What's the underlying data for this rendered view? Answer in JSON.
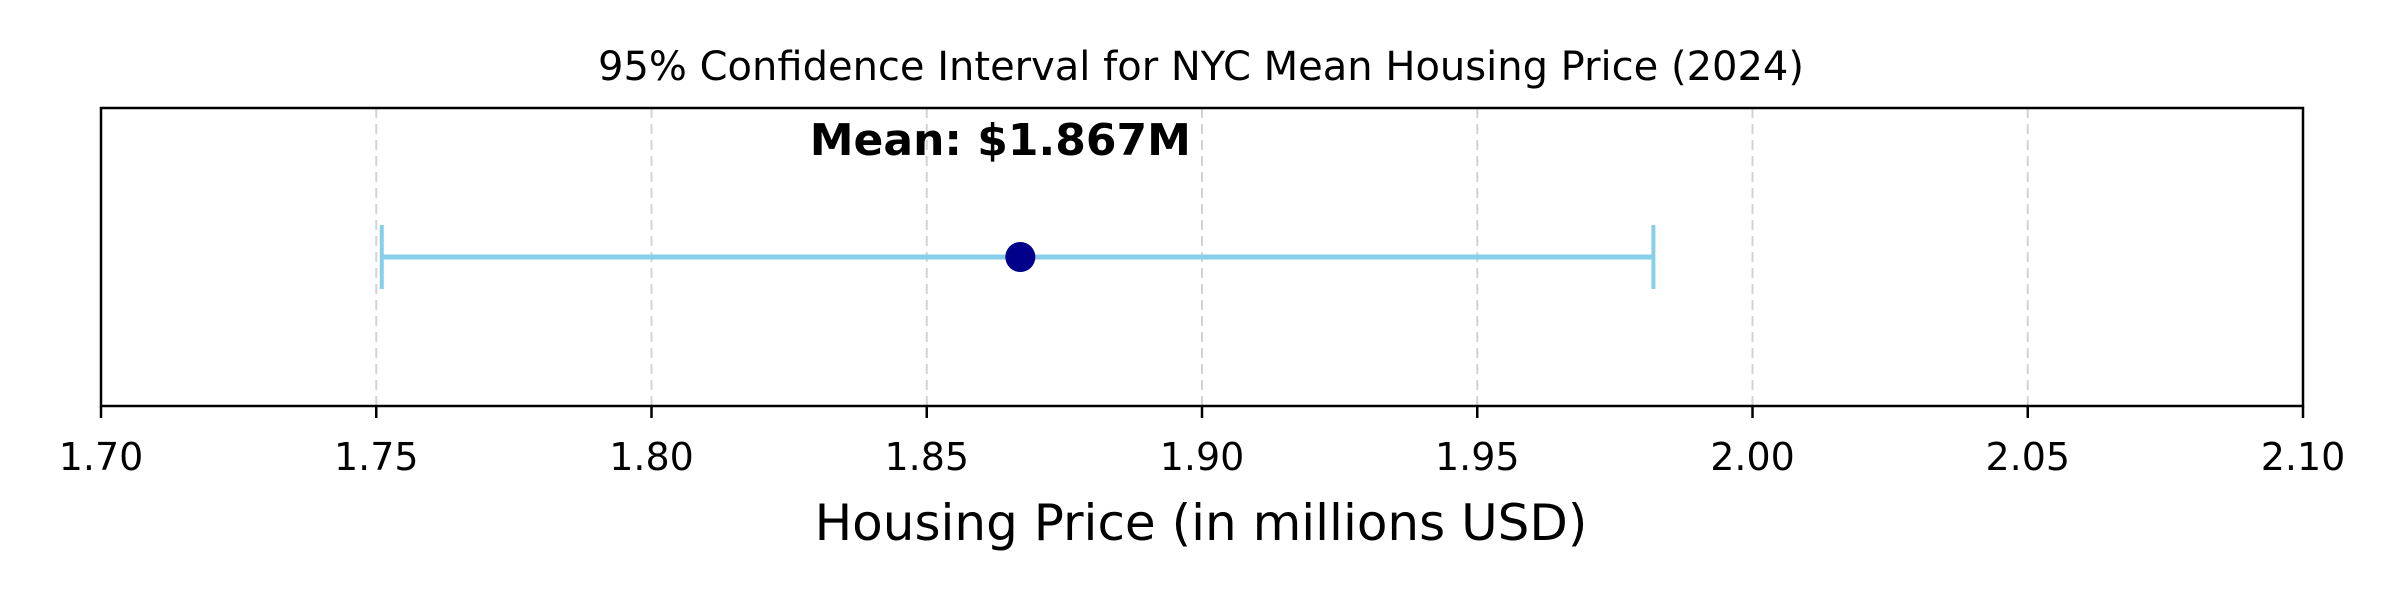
{
  "chart_data": {
    "type": "errorbar",
    "title": "95% Confidence Interval for NYC Mean Housing Price (2024)",
    "xlabel": "Housing Price (in millions USD)",
    "ylabel": "",
    "xlim": [
      1.7,
      2.1
    ],
    "xticks": [
      "1.70",
      "1.75",
      "1.80",
      "1.85",
      "1.90",
      "1.95",
      "2.00",
      "2.05",
      "2.10"
    ],
    "grid": "vertical-dashed",
    "mean": 1.867,
    "ci_lower": 1.751,
    "ci_upper": 1.982,
    "annotation": "Mean: $1.867M",
    "colors": {
      "interval": "#87ceeb",
      "mean_point": "#00008b",
      "grid": "#d3d3d3"
    }
  }
}
